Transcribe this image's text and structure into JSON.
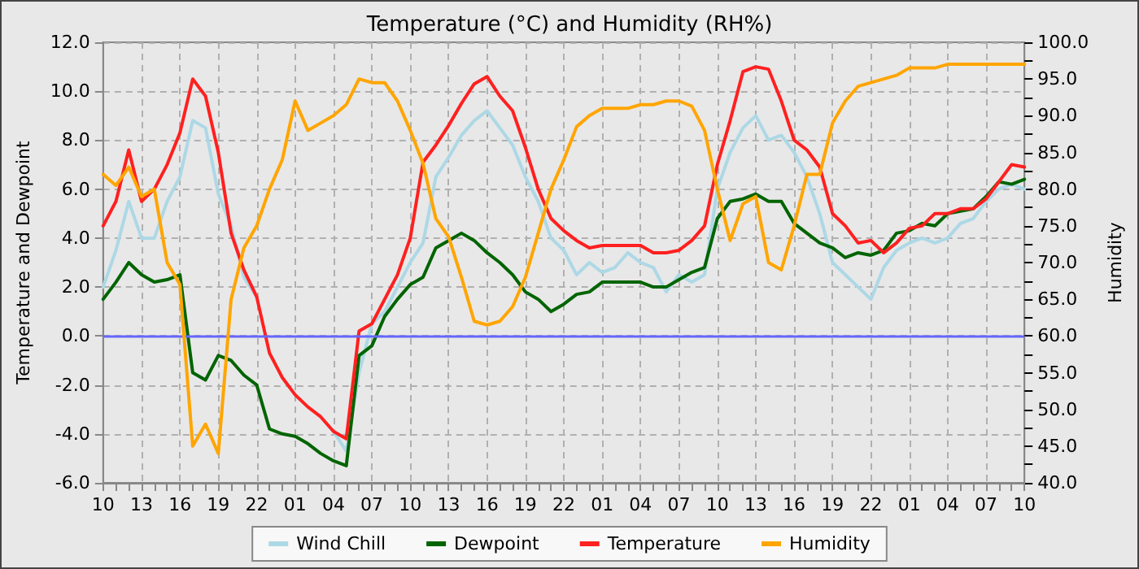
{
  "chart_data": {
    "type": "line",
    "title": "Temperature (°C) and Humidity (RH%)",
    "ylabel": "Temperature and Dewpoint",
    "y2label": "Humidity",
    "categories": [
      "10",
      null,
      null,
      "13",
      null,
      null,
      "16",
      null,
      null,
      "19",
      null,
      null,
      "22",
      null,
      null,
      "01",
      null,
      null,
      "04",
      null,
      null,
      "07",
      null,
      null,
      "10",
      null,
      null,
      "13",
      null,
      null,
      "16",
      null,
      null,
      "19",
      null,
      null,
      "22",
      null,
      null,
      "01",
      null,
      null,
      "04",
      null,
      null,
      "07",
      null,
      null,
      "10",
      null,
      null,
      "13",
      null,
      null,
      "16",
      null,
      null,
      "19",
      null,
      null,
      "22",
      null,
      null,
      "01",
      null,
      null,
      "04",
      null,
      null,
      "07",
      null,
      null,
      "10"
    ],
    "ylim": [
      -6,
      12
    ],
    "yticks": [
      {
        "value": -6,
        "label": "-6.0"
      },
      {
        "value": -4,
        "label": "-4.0"
      },
      {
        "value": -2,
        "label": "-2.0"
      },
      {
        "value": 0,
        "label": "0.0"
      },
      {
        "value": 2,
        "label": "2.0"
      },
      {
        "value": 4,
        "label": "4.0"
      },
      {
        "value": 6,
        "label": "6.0"
      },
      {
        "value": 8,
        "label": "8.0"
      },
      {
        "value": 10,
        "label": "10.0"
      },
      {
        "value": 12,
        "label": "12.0"
      }
    ],
    "y2lim": [
      40,
      100
    ],
    "y2ticks": [
      {
        "value": 40,
        "label": "40.0"
      },
      {
        "value": 42.5,
        "label": null
      },
      {
        "value": 45,
        "label": "45.0"
      },
      {
        "value": 47.5,
        "label": null
      },
      {
        "value": 50,
        "label": "50.0"
      },
      {
        "value": 52.5,
        "label": null
      },
      {
        "value": 55,
        "label": "55.0"
      },
      {
        "value": 57.5,
        "label": null
      },
      {
        "value": 60,
        "label": "60.0"
      },
      {
        "value": 62.5,
        "label": null
      },
      {
        "value": 65,
        "label": "65.0"
      },
      {
        "value": 67.5,
        "label": null
      },
      {
        "value": 70,
        "label": "70.0"
      },
      {
        "value": 72.5,
        "label": null
      },
      {
        "value": 75,
        "label": "75.0"
      },
      {
        "value": 77.5,
        "label": null
      },
      {
        "value": 80,
        "label": "80.0"
      },
      {
        "value": 82.5,
        "label": null
      },
      {
        "value": 85,
        "label": "85.0"
      },
      {
        "value": 87.5,
        "label": null
      },
      {
        "value": 90,
        "label": "90.0"
      },
      {
        "value": 92.5,
        "label": null
      },
      {
        "value": 95,
        "label": "95.0"
      },
      {
        "value": 97.5,
        "label": null
      },
      {
        "value": 100,
        "label": "100.0"
      }
    ],
    "grid": true,
    "legend": "bottom",
    "marker": "none",
    "line_style": "solid",
    "ref_lines": [
      {
        "axis": "y",
        "value": 0,
        "label": null,
        "color": "#6666ff"
      }
    ],
    "series": [
      {
        "name": "Wind Chill",
        "color": "#add8e6",
        "values": [
          2.0,
          3.5,
          5.5,
          4.0,
          4.0,
          5.5,
          6.5,
          8.8,
          8.5,
          5.8,
          4.5,
          2.4,
          1.6,
          null,
          null,
          null,
          null,
          null,
          -3.9,
          -4.7,
          -1.5,
          0.5,
          1.0,
          2.0,
          3.0,
          3.8,
          6.5,
          7.3,
          8.2,
          8.8,
          9.2,
          8.5,
          7.8,
          6.5,
          5.5,
          4.0,
          3.5,
          2.5,
          3.0,
          2.6,
          2.8,
          3.4,
          3.0,
          2.8,
          1.8,
          2.5,
          2.2,
          2.5,
          6.0,
          7.5,
          8.5,
          9.0,
          8.0,
          8.2,
          7.5,
          6.5,
          5.0,
          3.0,
          2.5,
          2.0,
          1.5,
          2.8,
          3.5,
          3.8,
          4.0,
          3.8,
          4.0,
          4.6,
          4.8,
          5.5,
          6.0,
          6.2,
          6.0
        ]
      },
      {
        "name": "Dewpoint",
        "color": "#006400",
        "values": [
          1.5,
          2.2,
          3.0,
          2.5,
          2.2,
          2.3,
          2.5,
          -1.5,
          -1.8,
          -0.8,
          -1.0,
          -1.6,
          -2.0,
          -3.8,
          -4.0,
          -4.1,
          -4.4,
          -4.8,
          -5.1,
          -5.3,
          -0.8,
          -0.4,
          0.8,
          1.5,
          2.1,
          2.4,
          3.6,
          3.9,
          4.2,
          3.9,
          3.4,
          3.0,
          2.5,
          1.8,
          1.5,
          1.0,
          1.3,
          1.7,
          1.8,
          2.2,
          2.2,
          2.2,
          2.2,
          2.0,
          2.0,
          2.3,
          2.6,
          2.8,
          4.8,
          5.5,
          5.6,
          5.8,
          5.5,
          5.5,
          4.6,
          4.2,
          3.8,
          3.6,
          3.2,
          3.4,
          3.3,
          3.5,
          4.2,
          4.3,
          4.6,
          4.5,
          5.0,
          5.1,
          5.2,
          5.7,
          6.3,
          6.2,
          6.4
        ]
      },
      {
        "name": "Temperature",
        "color": "#ff2020",
        "values": [
          4.5,
          5.5,
          7.6,
          5.5,
          6.0,
          7.0,
          8.3,
          10.5,
          9.8,
          7.5,
          4.2,
          2.7,
          1.6,
          -0.7,
          -1.7,
          -2.4,
          -2.9,
          -3.3,
          -3.9,
          -4.2,
          0.2,
          0.5,
          1.5,
          2.5,
          4.0,
          7.1,
          7.8,
          8.6,
          9.5,
          10.3,
          10.6,
          9.8,
          9.2,
          7.7,
          6.0,
          4.8,
          4.3,
          3.9,
          3.6,
          3.7,
          3.7,
          3.7,
          3.7,
          3.4,
          3.4,
          3.5,
          3.9,
          4.5,
          7.0,
          8.8,
          10.8,
          11.0,
          10.9,
          9.6,
          8.0,
          7.6,
          6.9,
          5.0,
          4.5,
          3.8,
          3.9,
          3.4,
          3.8,
          4.4,
          4.5,
          5.0,
          5.0,
          5.2,
          5.2,
          5.6,
          6.3,
          7.0,
          6.9
        ]
      },
      {
        "name": "Humidity",
        "color": "#ffa500",
        "axis": "y2",
        "values": [
          82,
          80.5,
          83,
          79,
          80,
          70,
          67,
          45,
          48,
          44,
          65,
          72,
          75,
          80,
          84,
          92,
          88,
          89,
          90,
          91.5,
          95,
          94.5,
          94.5,
          92,
          88,
          83.5,
          76,
          73.5,
          68,
          62,
          61.5,
          62,
          64,
          68,
          74,
          80,
          84,
          88.5,
          90,
          91,
          91,
          91,
          91.5,
          91.5,
          92,
          92,
          91.3,
          88,
          80,
          73,
          78,
          79,
          70,
          69,
          75,
          82,
          82,
          89,
          92,
          94,
          94.5,
          95,
          95.5,
          96.5,
          96.5,
          96.5,
          97,
          97,
          97,
          97,
          97,
          97,
          97
        ]
      }
    ]
  }
}
